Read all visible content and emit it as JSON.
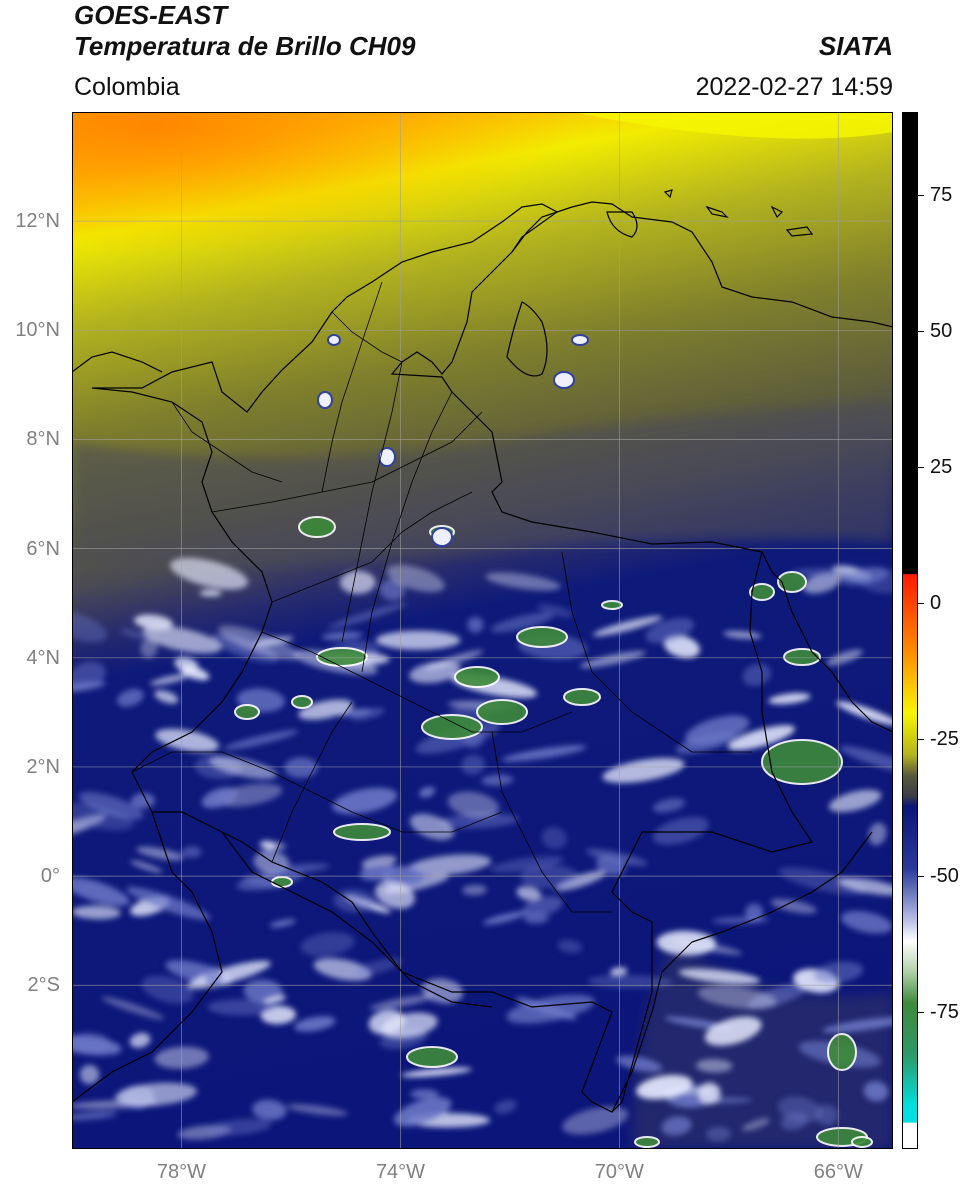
{
  "header": {
    "satellite": "GOES-EAST",
    "product": "Temperatura de Brillo CH09",
    "region": "Colombia",
    "agency": "SIATA",
    "datetime": "2022-02-27 14:59"
  },
  "map": {
    "lat_ticks": [
      {
        "label": "12°N",
        "value": 12
      },
      {
        "label": "10°N",
        "value": 10
      },
      {
        "label": "8°N",
        "value": 8
      },
      {
        "label": "6°N",
        "value": 6
      },
      {
        "label": "4°N",
        "value": 4
      },
      {
        "label": "2°N",
        "value": 2
      },
      {
        "label": "0°",
        "value": 0
      },
      {
        "label": "2°S",
        "value": -2
      }
    ],
    "lon_ticks": [
      {
        "label": "78°W",
        "value": -78
      },
      {
        "label": "74°W",
        "value": -74
      },
      {
        "label": "70°W",
        "value": -70
      },
      {
        "label": "66°W",
        "value": -66
      }
    ],
    "extent": {
      "lon_min": -80.0,
      "lon_max": -65.0,
      "lat_min": -5.0,
      "lat_max": 14.0
    },
    "colors": {
      "warm_orange": "#ff9a10",
      "yellow": "#f4f400",
      "olive": "#8c8c28",
      "gray_olive": "#4a4a52",
      "navy": "#0e1a7a",
      "cloud_white": "#e8ecff",
      "cold_green": "#3e8a3a",
      "border": "#000000",
      "grid": "#a0a0a0"
    }
  },
  "colorbar": {
    "range": [
      -100,
      90
    ],
    "ticks": [
      {
        "label": "75",
        "value": 75
      },
      {
        "label": "50",
        "value": 50
      },
      {
        "label": "25",
        "value": 25
      },
      {
        "label": "0",
        "value": 0
      },
      {
        "label": "-25",
        "value": -25
      },
      {
        "label": "-50",
        "value": -50
      },
      {
        "label": "-75",
        "value": -75
      }
    ]
  }
}
